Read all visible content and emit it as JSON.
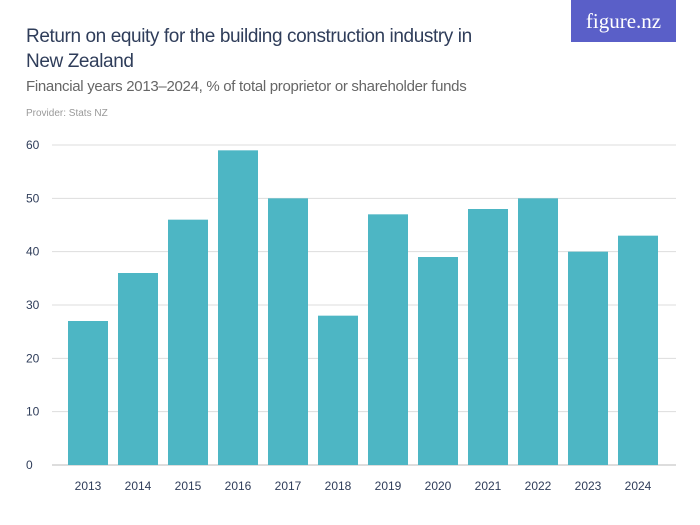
{
  "header": {
    "title": "Return on equity for the building construction industry in New Zealand",
    "subtitle": "Financial years 2013–2024, % of total proprietor or shareholder funds",
    "provider": "Provider: Stats NZ",
    "logo": "figure.nz"
  },
  "colors": {
    "bar": "#4db6c4",
    "logo_bg": "#5a5fc8",
    "grid": "#dddddd"
  },
  "chart_data": {
    "type": "bar",
    "title": "Return on equity for the building construction industry in New Zealand",
    "categories": [
      "2013",
      "2014",
      "2015",
      "2016",
      "2017",
      "2018",
      "2019",
      "2020",
      "2021",
      "2022",
      "2023",
      "2024"
    ],
    "values": [
      27,
      36,
      46,
      59,
      50,
      28,
      47,
      39,
      48,
      50,
      40,
      43
    ],
    "ylim": [
      0,
      60
    ],
    "yticks": [
      0,
      10,
      20,
      30,
      40,
      50,
      60
    ],
    "grid": true,
    "xlabel": "",
    "ylabel": ""
  }
}
